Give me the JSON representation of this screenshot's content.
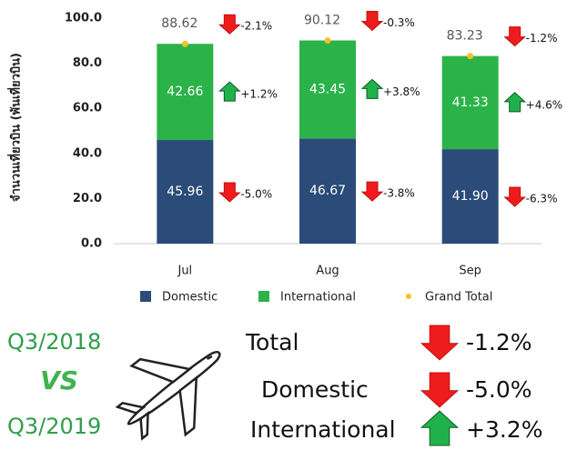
{
  "chart_data": {
    "type": "stacked_bar",
    "y_label": "จำนวนเที่ยวบิน (พันเที่ยวบิน)",
    "categories": [
      "Jul",
      "Aug",
      "Sep"
    ],
    "ylim": [
      0,
      100
    ],
    "yticks": [
      {
        "value": 0,
        "label": "0.0"
      },
      {
        "value": 20,
        "label": "20.0"
      },
      {
        "value": 40,
        "label": "40.0"
      },
      {
        "value": 60,
        "label": "60.0"
      },
      {
        "value": 80,
        "label": "80.0"
      },
      {
        "value": 100,
        "label": "100.0"
      }
    ],
    "series": [
      {
        "name": "Domestic",
        "kind": "bar",
        "color": "#2b4b78",
        "values": [
          45.96,
          46.67,
          41.9
        ],
        "value_labels": [
          "45.96",
          "46.67",
          "41.90"
        ],
        "changes": [
          -5.0,
          -3.8,
          -6.3
        ],
        "change_labels": [
          "-5.0%",
          "-3.8%",
          "-6.3%"
        ]
      },
      {
        "name": "International",
        "kind": "bar",
        "color": "#2bb34a",
        "values": [
          42.66,
          43.45,
          41.33
        ],
        "changes": [
          1.2,
          3.8,
          4.6
        ],
        "change_labels": [
          "+1.2%",
          "+3.8%",
          "+4.6%"
        ]
      },
      {
        "name": "Grand Total",
        "kind": "dot",
        "color": "#f2c12e",
        "values": [
          88.62,
          90.12,
          83.23
        ],
        "changes": [
          -2.1,
          -0.3,
          -1.2
        ],
        "change_labels": [
          "-2.1%",
          "-0.3%",
          "-1.2%"
        ]
      }
    ]
  },
  "summary": {
    "period_from": "Q3/2018",
    "vs": "VS",
    "period_to": "Q3/2019",
    "rows": [
      {
        "label": "Total",
        "change": -1.2,
        "change_label": "-1.2%"
      },
      {
        "label": "Domestic",
        "change": -5.0,
        "change_label": "-5.0%"
      },
      {
        "label": "International",
        "change": 3.2,
        "change_label": "+3.2%"
      }
    ]
  }
}
